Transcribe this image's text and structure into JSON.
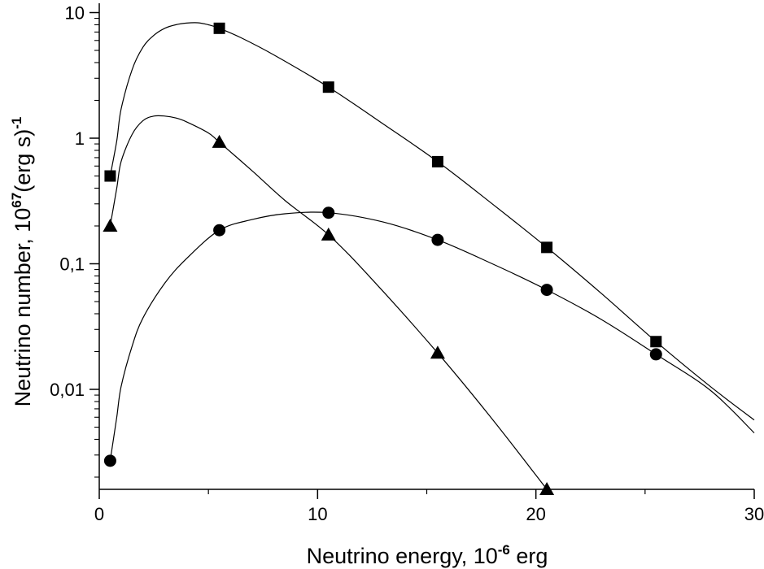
{
  "chart_data": {
    "type": "scatter",
    "x_title": {
      "text": "Neutrino energy, 10",
      "exponent": "-6",
      "suffix": " erg"
    },
    "y_title": {
      "text": "Neutrino number, 10",
      "exponent": "67",
      "mid": "(erg s)",
      "exponent2": "-1"
    },
    "xlim": [
      0,
      30
    ],
    "ylim": [
      0.0015,
      13
    ],
    "yscale": "log",
    "x_ticks": [
      {
        "value": 0,
        "label": "0"
      },
      {
        "value": 10,
        "label": "10"
      },
      {
        "value": 20,
        "label": "20"
      },
      {
        "value": 30,
        "label": "30"
      }
    ],
    "y_ticks": [
      {
        "value": 10,
        "label": "10"
      },
      {
        "value": 1,
        "label": "1"
      },
      {
        "value": 0.1,
        "label": "0,1"
      },
      {
        "value": 0.01,
        "label": "0,01"
      }
    ],
    "grid": false,
    "series": [
      {
        "marker": "square",
        "points": [
          [
            0.5,
            0.5
          ],
          [
            5.5,
            7.5
          ],
          [
            10.5,
            2.55
          ],
          [
            15.5,
            0.65
          ],
          [
            20.5,
            0.135
          ],
          [
            25.5,
            0.024
          ]
        ],
        "curve": [
          [
            0.5,
            0.5
          ],
          [
            0.8,
            0.95
          ],
          [
            1.0,
            1.7
          ],
          [
            1.5,
            3.5
          ],
          [
            2.0,
            5.3
          ],
          [
            2.5,
            6.6
          ],
          [
            3.0,
            7.5
          ],
          [
            3.5,
            8.0
          ],
          [
            4.0,
            8.25
          ],
          [
            4.5,
            8.3
          ],
          [
            5.0,
            8.0
          ],
          [
            5.5,
            7.5
          ],
          [
            6.5,
            6.3
          ],
          [
            8.0,
            4.6
          ],
          [
            10.5,
            2.55
          ],
          [
            13.0,
            1.3
          ],
          [
            15.5,
            0.65
          ],
          [
            18.0,
            0.3
          ],
          [
            20.5,
            0.135
          ],
          [
            23.0,
            0.058
          ],
          [
            25.5,
            0.024
          ],
          [
            28.0,
            0.0105
          ],
          [
            30.0,
            0.0057
          ]
        ]
      },
      {
        "marker": "triangle",
        "points": [
          [
            0.5,
            0.2
          ],
          [
            5.5,
            0.93
          ],
          [
            10.5,
            0.17
          ],
          [
            15.5,
            0.0195
          ],
          [
            20.5,
            0.0016
          ]
        ],
        "curve": [
          [
            0.5,
            0.2
          ],
          [
            0.8,
            0.4
          ],
          [
            1.0,
            0.65
          ],
          [
            1.5,
            1.07
          ],
          [
            2.0,
            1.38
          ],
          [
            2.5,
            1.5
          ],
          [
            3.0,
            1.5
          ],
          [
            3.5,
            1.45
          ],
          [
            4.0,
            1.35
          ],
          [
            5.0,
            1.1
          ],
          [
            5.5,
            0.93
          ],
          [
            7.0,
            0.55
          ],
          [
            8.5,
            0.32
          ],
          [
            10.5,
            0.17
          ],
          [
            12.5,
            0.075
          ],
          [
            15.5,
            0.0195
          ],
          [
            18.0,
            0.0058
          ],
          [
            20.5,
            0.0016
          ]
        ]
      },
      {
        "marker": "circle",
        "points": [
          [
            0.5,
            0.0027
          ],
          [
            5.5,
            0.185
          ],
          [
            10.5,
            0.255
          ],
          [
            15.5,
            0.155
          ],
          [
            20.5,
            0.062
          ],
          [
            25.5,
            0.019
          ]
        ],
        "curve": [
          [
            0.5,
            0.0027
          ],
          [
            0.8,
            0.006
          ],
          [
            1.0,
            0.0105
          ],
          [
            1.5,
            0.022
          ],
          [
            2.0,
            0.037
          ],
          [
            3.0,
            0.07
          ],
          [
            4.0,
            0.11
          ],
          [
            5.5,
            0.185
          ],
          [
            7.0,
            0.225
          ],
          [
            8.5,
            0.25
          ],
          [
            10.5,
            0.255
          ],
          [
            13.0,
            0.215
          ],
          [
            15.5,
            0.155
          ],
          [
            18.0,
            0.1
          ],
          [
            20.5,
            0.062
          ],
          [
            23.0,
            0.036
          ],
          [
            25.5,
            0.019
          ],
          [
            28.0,
            0.0098
          ],
          [
            30.0,
            0.0045
          ]
        ]
      }
    ]
  }
}
